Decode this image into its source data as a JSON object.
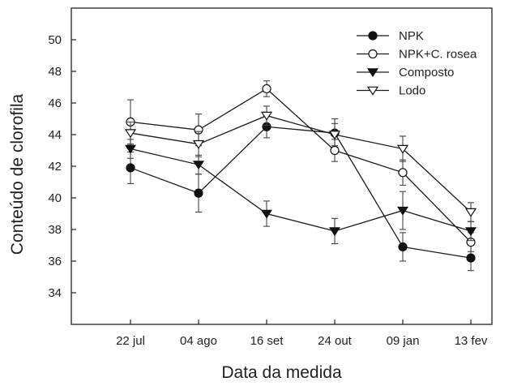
{
  "chart_data": {
    "type": "line",
    "xlabel": "Data da medida",
    "ylabel": "Conteúdo de clorofila",
    "categories": [
      "22 jul",
      "04 ago",
      "16 set",
      "24 out",
      "09 jan",
      "13 fev"
    ],
    "ylim": [
      32,
      52
    ],
    "yticks": [
      34,
      36,
      38,
      40,
      42,
      44,
      46,
      48,
      50
    ],
    "grid": false,
    "legend_position": "top-right",
    "series": [
      {
        "name": "NPK",
        "marker": "filled-circle",
        "values": [
          41.9,
          40.3,
          44.5,
          44.1,
          36.9,
          36.2
        ],
        "errors": [
          1.0,
          1.2,
          0.7,
          0.9,
          0.9,
          0.8
        ]
      },
      {
        "name": "NPK+C. rosea",
        "marker": "open-circle",
        "values": [
          44.8,
          44.3,
          46.9,
          43.0,
          41.6,
          37.2
        ],
        "errors": [
          1.4,
          1.0,
          0.5,
          0.7,
          0.8,
          0.6
        ]
      },
      {
        "name": "Composto",
        "marker": "filled-triangle-down",
        "values": [
          43.1,
          42.1,
          39.0,
          37.9,
          39.2,
          37.9
        ],
        "errors": [
          0.6,
          0.6,
          0.8,
          0.8,
          1.2,
          0.6
        ]
      },
      {
        "name": "Lodo",
        "marker": "open-triangle-down",
        "values": [
          44.1,
          43.4,
          45.2,
          44.0,
          43.1,
          39.1
        ],
        "errors": [
          0.7,
          0.8,
          0.6,
          0.7,
          0.8,
          0.6
        ]
      }
    ]
  }
}
